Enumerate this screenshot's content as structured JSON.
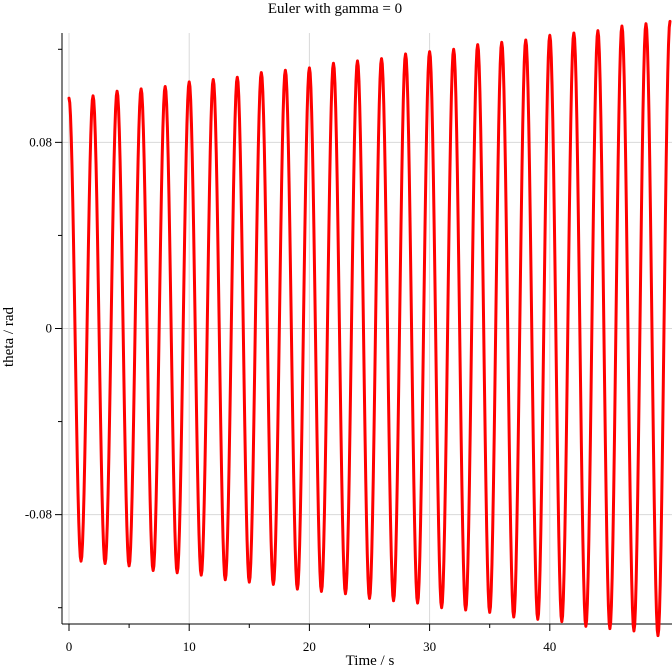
{
  "chart_data": {
    "type": "line",
    "title": "Euler with gamma = 0",
    "xlabel": "Time / s",
    "ylabel": "theta / rad",
    "xlim": [
      0,
      50
    ],
    "ylim": [
      -0.127,
      0.127
    ],
    "x_ticks": [
      0,
      10,
      20,
      30,
      40
    ],
    "x_tick_labels": [
      "0",
      "10",
      "20",
      "30",
      "40"
    ],
    "y_ticks": [
      -0.08,
      0,
      0.08
    ],
    "y_tick_labels": [
      "-0.08",
      "0",
      "0.08"
    ],
    "grid": true,
    "legend": "none",
    "series": [
      {
        "color": "#ff0000",
        "x": [
          0,
          1.0,
          2.0,
          3.0,
          4.0,
          5.0,
          6.0,
          7.0,
          8.0,
          9.0,
          10.0,
          11.0,
          12.0,
          13.0,
          14.0,
          15.0,
          16.0,
          17.0,
          18.0,
          19.0,
          20.0,
          21.0,
          22.0,
          23.0,
          24.0,
          25.0,
          26.0,
          27.0,
          28.0,
          29.0,
          30.0,
          31.0,
          32.0,
          33.0,
          34.0,
          35.0,
          36.0,
          37.0,
          38.0,
          39.0,
          40.0,
          41.0,
          42.0,
          43.0,
          44.0,
          45.0,
          46.0,
          47.0,
          48.0,
          49.0,
          50.0
        ],
        "y": [
          0.099,
          -0.1,
          0.1,
          -0.101,
          0.102,
          -0.102,
          0.103,
          -0.104,
          0.104,
          -0.105,
          0.106,
          -0.106,
          0.107,
          -0.108,
          0.108,
          -0.109,
          0.11,
          -0.11,
          0.111,
          -0.112,
          0.112,
          -0.113,
          0.114,
          -0.114,
          0.115,
          -0.116,
          0.116,
          -0.117,
          0.118,
          -0.118,
          0.119,
          -0.12,
          0.12,
          -0.121,
          0.122,
          -0.122,
          0.123,
          -0.124,
          0.124,
          -0.125,
          0.126,
          -0.126,
          0.127,
          -0.128,
          0.128,
          -0.129,
          0.13,
          -0.13,
          0.131,
          -0.132,
          0.132
        ]
      }
    ]
  }
}
